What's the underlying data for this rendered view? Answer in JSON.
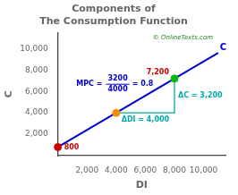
{
  "chart_data": {
    "type": "line",
    "title": [
      "Components of",
      "The Consumption Function"
    ],
    "xlabel": "DI",
    "ylabel": "C",
    "xlim": [
      0,
      11500
    ],
    "ylim": [
      0,
      11500
    ],
    "xticks": [
      {
        "value": 2000,
        "label": "2,000"
      },
      {
        "value": 4000,
        "label": "4,000"
      },
      {
        "value": 6000,
        "label": "6,000"
      },
      {
        "value": 8000,
        "label": "8,000"
      },
      {
        "value": 10000,
        "label": "10,000"
      }
    ],
    "yticks": [
      {
        "value": 2000,
        "label": "2,000"
      },
      {
        "value": 4000,
        "label": "4,000"
      },
      {
        "value": 6000,
        "label": "6,000"
      },
      {
        "value": 8000,
        "label": "8,000"
      },
      {
        "value": 10000,
        "label": "10,000"
      }
    ],
    "grid": false,
    "series": [
      {
        "name": "C",
        "color": "#0000CC",
        "x": [
          0,
          11000
        ],
        "values": [
          800,
          9600
        ]
      },
      {
        "color": "#00AAAA",
        "x": [
          4000,
          8000,
          8000
        ],
        "values": [
          4000,
          4000,
          7200
        ]
      },
      {
        "type": "scatter",
        "colors": [
          "#FF8C00",
          "#00BB00",
          "#CC0000"
        ],
        "x": [
          4000,
          8000,
          0
        ],
        "values": [
          4000,
          7200,
          800
        ]
      }
    ],
    "annotations": [
      {
        "text": "800",
        "color": "#CC0000"
      },
      {
        "text": "7,200",
        "color": "#CC0000"
      },
      {
        "text": "MPC =",
        "color": "#0000CC"
      },
      {
        "text": "3200",
        "color": "#0000CC"
      },
      {
        "text": "4000",
        "color": "#0000CC"
      },
      {
        "text": "= 0.8",
        "color": "#0000CC"
      },
      {
        "text": "ΔDI = 4,000",
        "color": "#00AAAA"
      },
      {
        "text": "ΔC = 3,200",
        "color": "#00AAAA"
      },
      {
        "text": "© OnlineTexts.com",
        "color": "#228822"
      }
    ]
  }
}
